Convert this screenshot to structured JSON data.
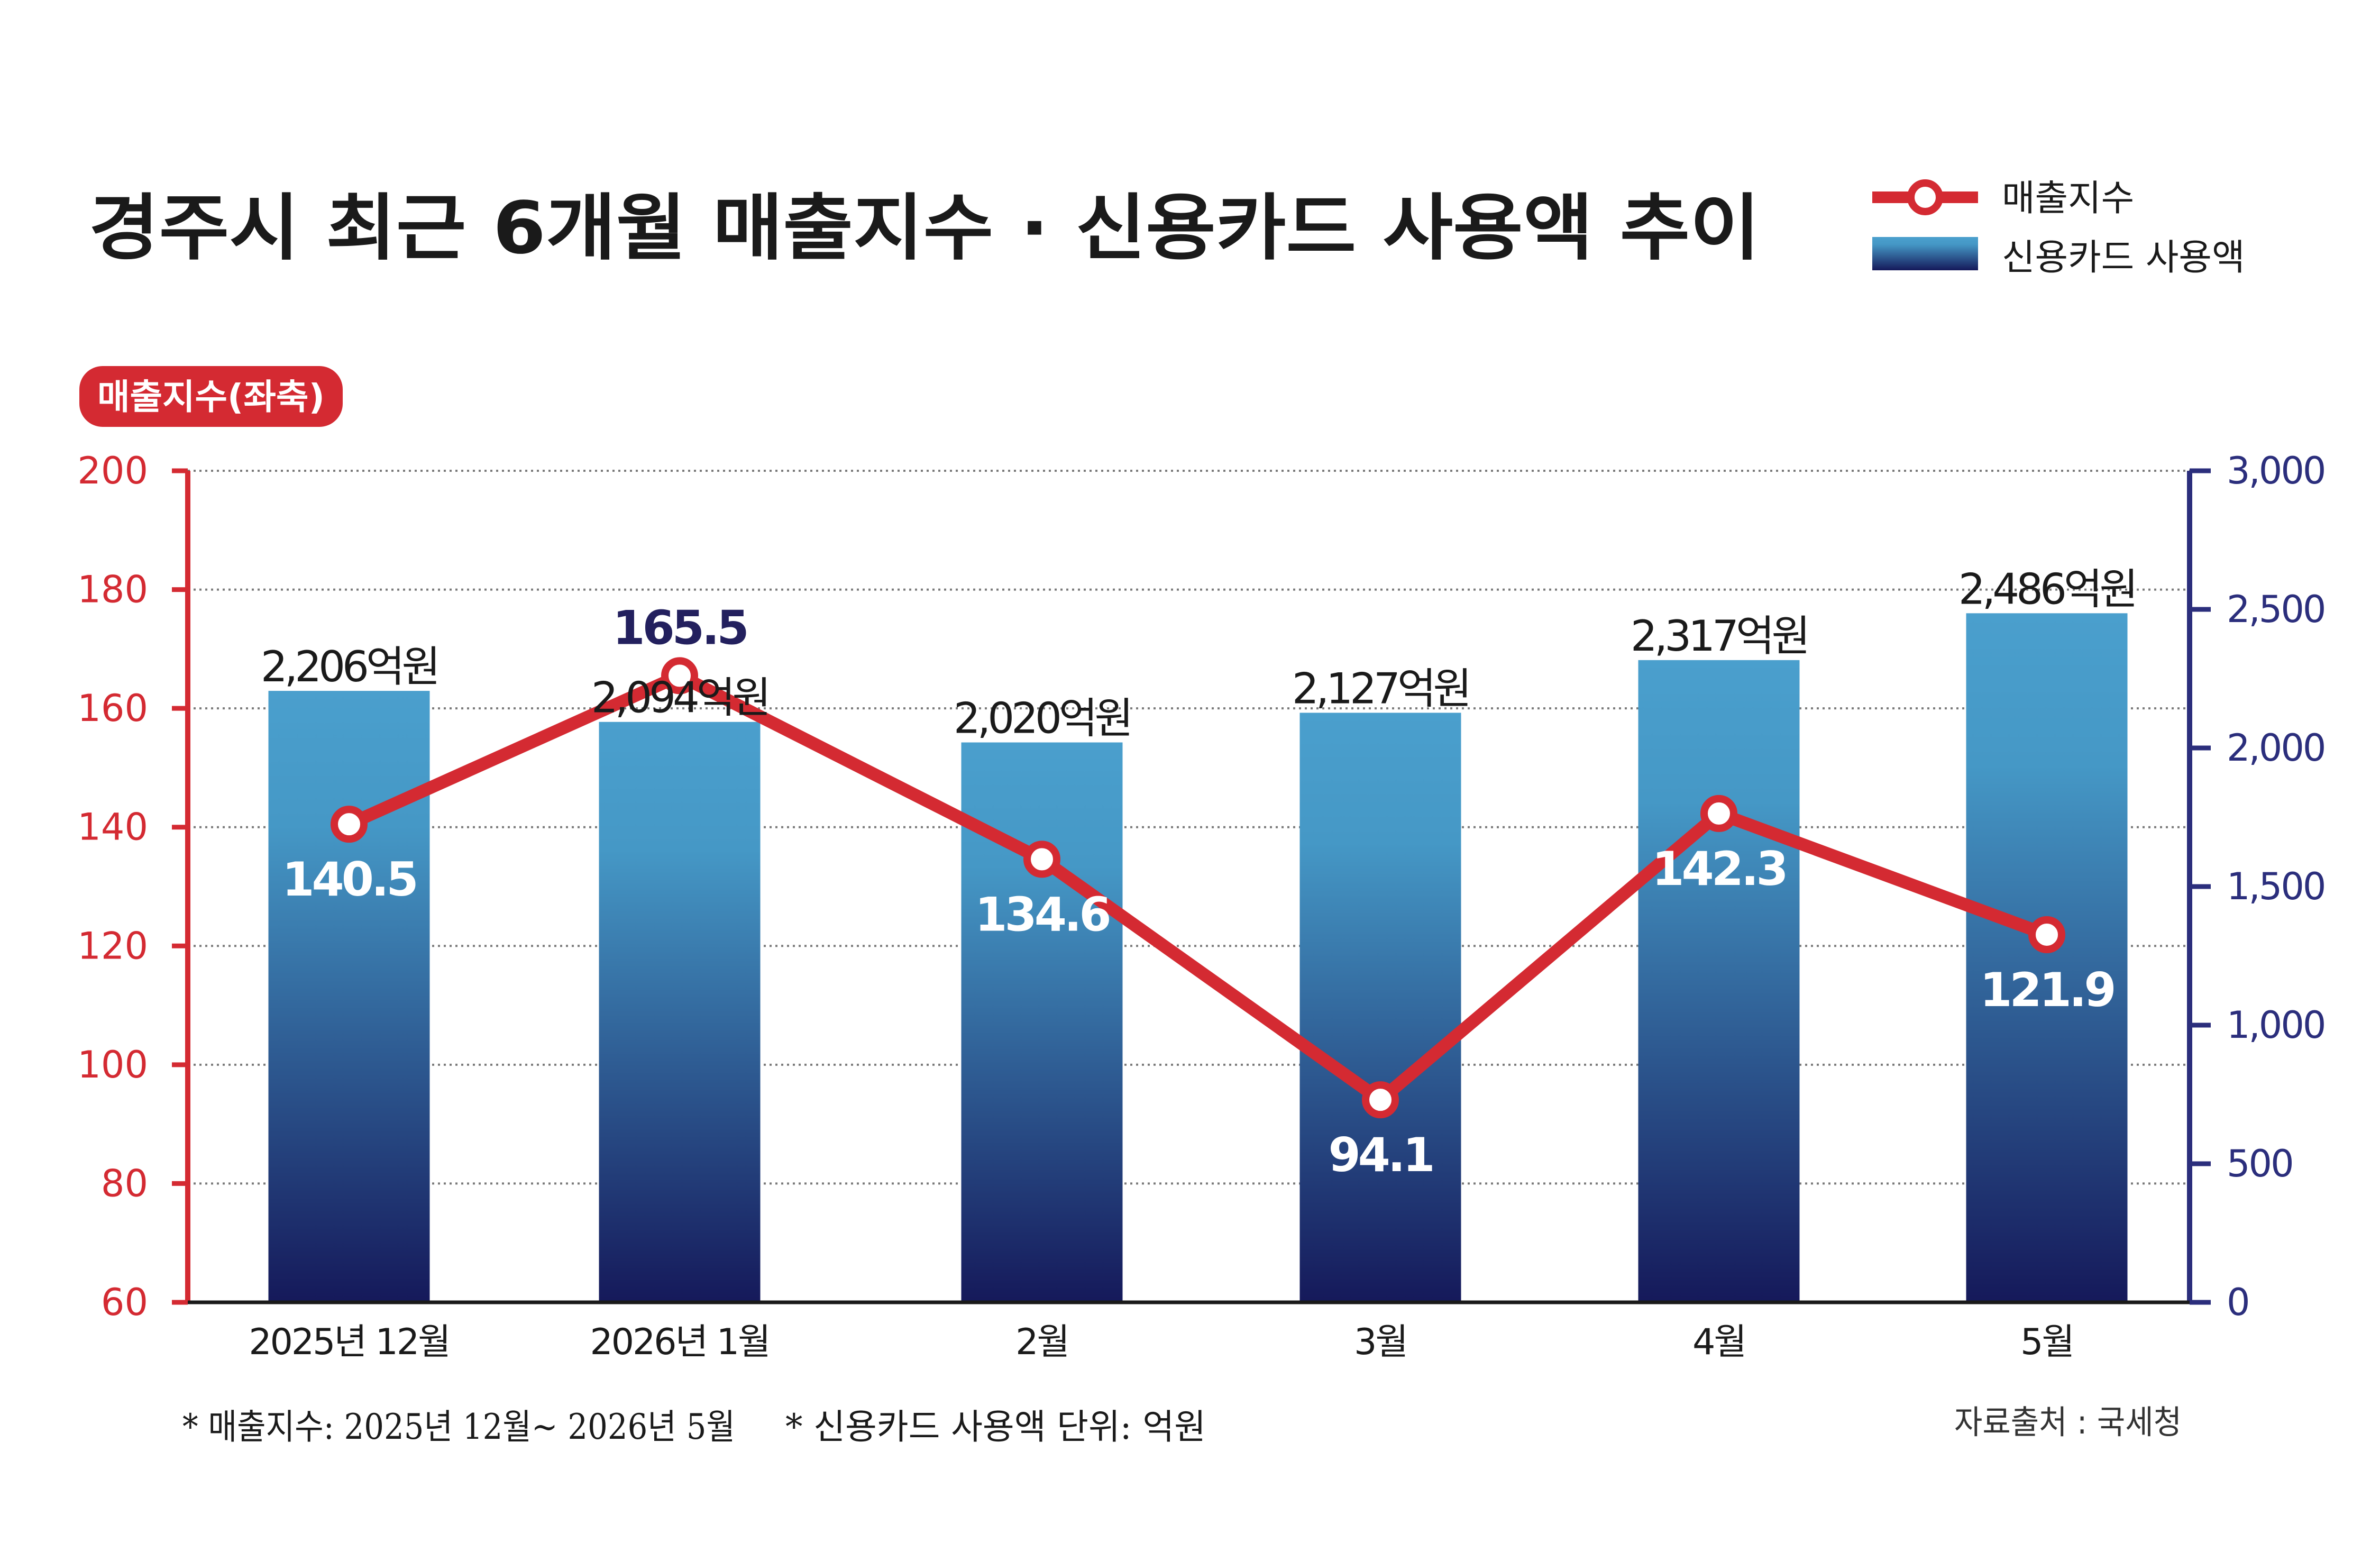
{
  "title": "경주시 최근 6개월 매출지수 · 신용카드 사용액 추이",
  "legend": {
    "line_label": "매출지수",
    "bar_label": "신용카드 사용액"
  },
  "left_axis_badge": "매출지수(좌축)",
  "footnote_left": "* 매출지수: 2025년 12월~ 2026년 5월",
  "footnote_mid": "* 신용카드 사용액 단위: 억원",
  "source": "자료출처 : 국세청",
  "colors": {
    "line": "#d42a32",
    "left_axis": "#d42a32",
    "right_axis": "#2b2e7c",
    "bar_top": "#4a9fcd",
    "bar_bottom": "#15195a",
    "peak_label": "#23205e",
    "text": "#1a1a1a"
  },
  "chart_data": {
    "type": "bar",
    "categories": [
      "2025년 12월",
      "2026년 1월",
      "2월",
      "3월",
      "4월",
      "5월"
    ],
    "series": [
      {
        "name": "신용카드 사용액",
        "type": "bar",
        "axis": "right",
        "values": [
          2206,
          2094,
          2020,
          2127,
          2317,
          2486
        ],
        "labels": [
          "2,206억원",
          "2,094억원",
          "2,020억원",
          "2,127억원",
          "2,317억원",
          "2,486억원"
        ]
      },
      {
        "name": "매출지수",
        "type": "line",
        "axis": "left",
        "values": [
          140.5,
          165.5,
          134.6,
          94.1,
          142.3,
          121.9
        ],
        "labels": [
          "140.5",
          "165.5",
          "134.6",
          "94.1",
          "142.3",
          "121.9"
        ]
      }
    ],
    "y_left": {
      "range": [
        60,
        200
      ],
      "ticks": [
        200,
        180,
        160,
        140,
        120,
        100,
        80,
        60
      ],
      "tick_labels": [
        "200",
        "180",
        "160",
        "140",
        "120",
        "100",
        "80",
        "60"
      ]
    },
    "y_right": {
      "range": [
        0,
        3000
      ],
      "ticks": [
        3000,
        2500,
        2000,
        1500,
        1000,
        500,
        0
      ],
      "tick_labels": [
        "3,000",
        "2,500",
        "2,000",
        "1,500",
        "1,000",
        "500",
        "0"
      ]
    },
    "grid": true
  }
}
